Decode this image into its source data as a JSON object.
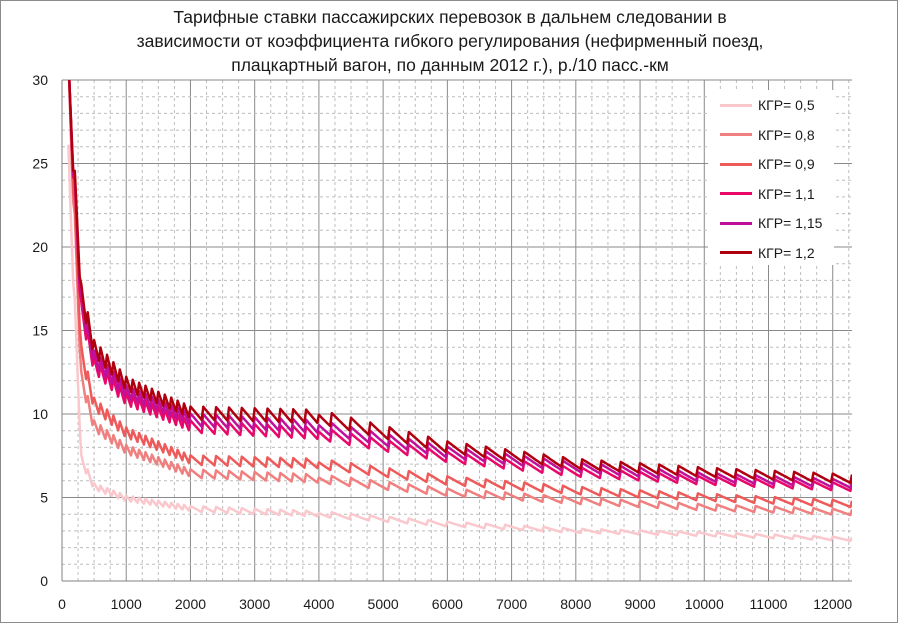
{
  "chart_data": {
    "type": "line",
    "title_lines": [
      "Тарифные ставки пассажирских перевозок в дальнем следовании в",
      "зависимости от коэффициента гибкого регулирования (нефирменный поезд,",
      "плацкартный вагон, по данным 2012 г.), р./10 пасс.-км"
    ],
    "xlabel": "",
    "ylabel": "",
    "xlim": [
      0,
      12300
    ],
    "ylim": [
      0,
      30
    ],
    "x_ticks": [
      "0",
      "1000",
      "2000",
      "3000",
      "4000",
      "5000",
      "6000",
      "7000",
      "8000",
      "9000",
      "10000",
      "11000",
      "12000"
    ],
    "y_ticks": [
      "0",
      "5",
      "10",
      "15",
      "20",
      "25",
      "30"
    ],
    "grid": true,
    "legend_position": "top-right",
    "series": [
      {
        "name": "КГР= 0,5",
        "color": "#f9c7cc",
        "x": [
          100,
          300,
          500,
          1000,
          2000,
          4000,
          6000,
          8000,
          10000,
          12300
        ],
        "values": [
          25.0,
          7.2,
          5.6,
          4.9,
          4.3,
          4.0,
          3.4,
          3.0,
          2.8,
          2.5
        ]
      },
      {
        "name": "КГР= 0,8",
        "color": "#f08080",
        "x": [
          100,
          300,
          500,
          1000,
          2000,
          4000,
          6000,
          8000,
          10000,
          12300
        ],
        "values": [
          30.0,
          12.0,
          9.2,
          7.8,
          6.4,
          6.1,
          5.3,
          4.8,
          4.4,
          4.1
        ]
      },
      {
        "name": "КГР= 0,9",
        "color": "#ee5a5a",
        "x": [
          100,
          300,
          500,
          1000,
          2000,
          4000,
          6000,
          8000,
          10000,
          12300
        ],
        "values": [
          30.0,
          13.5,
          10.5,
          8.8,
          7.2,
          7.0,
          6.0,
          5.4,
          5.0,
          4.6
        ]
      },
      {
        "name": "КГР= 1,1",
        "color": "#e8086a",
        "x": [
          100,
          300,
          500,
          1000,
          2000,
          4000,
          6000,
          8000,
          10000,
          12300
        ],
        "values": [
          30.0,
          16.0,
          12.8,
          10.8,
          9.2,
          8.8,
          7.4,
          6.5,
          6.0,
          5.6
        ]
      },
      {
        "name": "КГР= 1,15",
        "color": "#c0109a",
        "x": [
          100,
          300,
          500,
          1000,
          2000,
          4000,
          6000,
          8000,
          10000,
          12300
        ],
        "values": [
          30.0,
          16.5,
          13.2,
          11.2,
          9.6,
          9.2,
          7.7,
          6.8,
          6.2,
          5.8
        ]
      },
      {
        "name": "КГР= 1,2",
        "color": "#b00010",
        "x": [
          100,
          300,
          500,
          1000,
          2000,
          4000,
          6000,
          8000,
          10000,
          12300
        ],
        "values": [
          30.0,
          17.0,
          13.8,
          11.7,
          10.0,
          9.8,
          8.0,
          7.0,
          6.5,
          6.1
        ]
      }
    ]
  }
}
